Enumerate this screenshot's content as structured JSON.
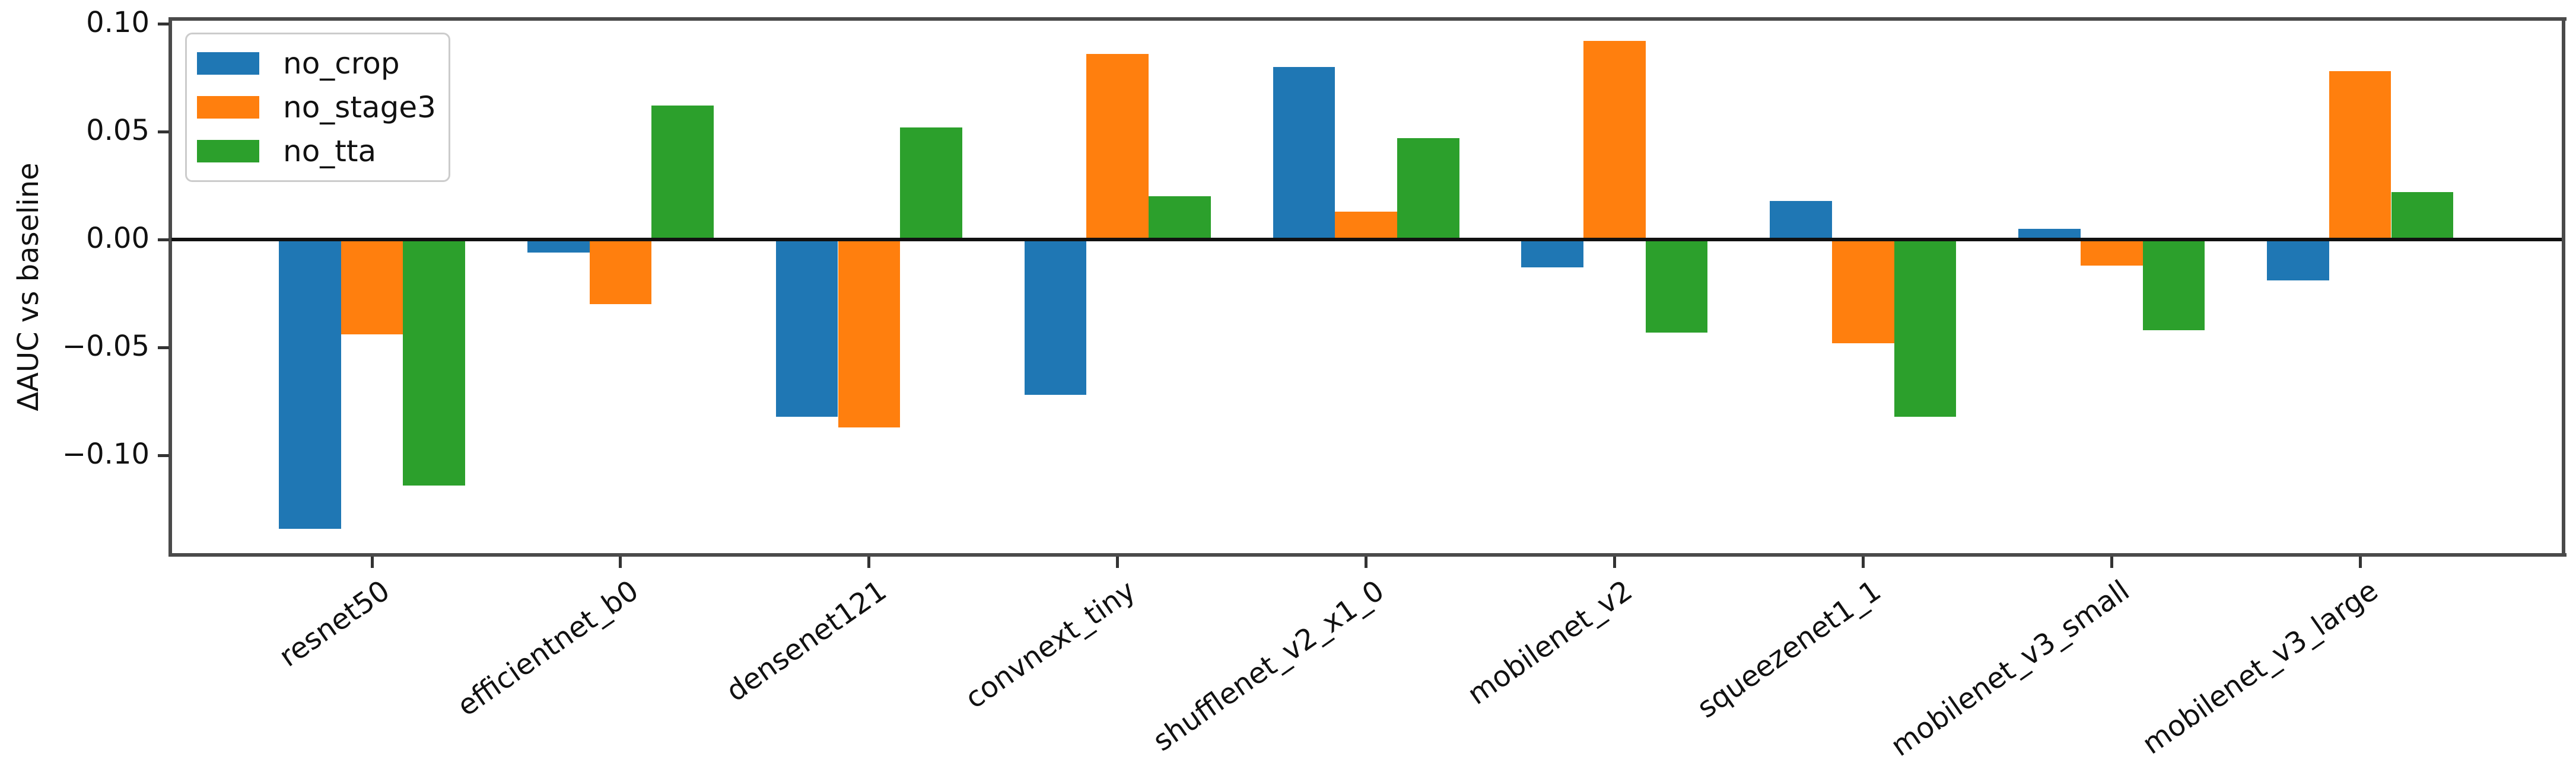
{
  "chart_data": {
    "type": "bar",
    "title": "",
    "xlabel": "",
    "ylabel": "ΔAUC vs baseline",
    "categories": [
      "resnet50",
      "efficientnet_b0",
      "densenet121",
      "convnext_tiny",
      "shufflenet_v2_x1_0",
      "mobilenet_v2",
      "squeezenet1_1",
      "mobilenet_v3_small",
      "mobilenet_v3_large"
    ],
    "series": [
      {
        "name": "no_crop",
        "color": "#1f77b4",
        "values": [
          -0.134,
          -0.006,
          -0.082,
          -0.072,
          0.08,
          -0.013,
          0.018,
          0.005,
          -0.019
        ]
      },
      {
        "name": "no_stage3",
        "color": "#ff7f0e",
        "values": [
          -0.044,
          -0.03,
          -0.087,
          0.086,
          0.013,
          0.092,
          -0.048,
          -0.012,
          0.078
        ]
      },
      {
        "name": "no_tta",
        "color": "#2ca02c",
        "values": [
          -0.114,
          0.062,
          0.052,
          0.02,
          0.047,
          -0.043,
          -0.082,
          -0.042,
          0.022
        ]
      }
    ],
    "y_ticks": [
      0.1,
      0.05,
      0.0,
      -0.05,
      -0.1
    ],
    "y_tick_labels": [
      "0.10",
      "0.05",
      "0.00",
      "−0.05",
      "−0.10"
    ],
    "ylim": [
      -0.146,
      0.104
    ],
    "baseline_line": 0,
    "legend_position": "upper left",
    "grid": false
  }
}
